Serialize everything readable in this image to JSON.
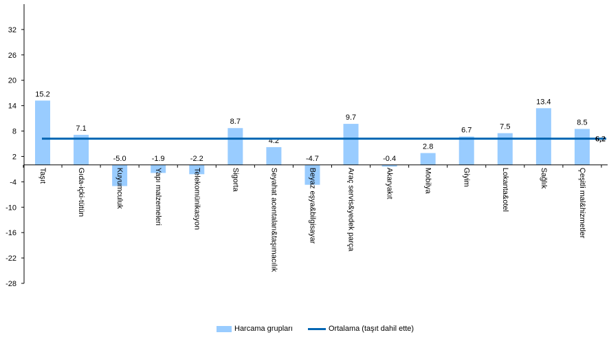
{
  "chart_data": {
    "type": "bar",
    "categories": [
      "Taşıt",
      "Gıda-içki-tütün",
      "Kuyumculuk",
      "Yapı malzemeleri",
      "Telekomünikasyon",
      "Sigorta",
      "Seyahat acentaları&taşımacılık",
      "Beyaz eşya&bilgisayar",
      "Araç servis&yedek parça",
      "Akaryakıt",
      "Mobilya",
      "Giyim",
      "Lokanta&otel",
      "Sağlık",
      "Çeşitli mal&hizmetler"
    ],
    "series": [
      {
        "name": "Harcama grupları",
        "type": "bar",
        "color": "#99ccff",
        "values": [
          15.2,
          7.1,
          -5.0,
          -1.9,
          -2.2,
          8.7,
          4.2,
          -4.7,
          9.7,
          -0.4,
          2.8,
          6.7,
          7.5,
          13.4,
          8.5
        ],
        "value_labels": [
          "15.2",
          "7.1",
          "-5.0",
          "-1.9",
          "-2.2",
          "8.7",
          "4.2",
          "-4.7",
          "9.7",
          "-0.4",
          "2.8",
          "6.7",
          "7.5",
          "13.4",
          "8.5"
        ]
      },
      {
        "name": "Ortalama (taşıt dahil ette)",
        "type": "line",
        "color": "#0066b3",
        "value": 6.2,
        "value_label": "6,2"
      }
    ],
    "y_ticks": [
      "32",
      "26",
      "20",
      "14",
      "8",
      "2",
      "-4",
      "-10",
      "-16",
      "-22",
      "-28"
    ],
    "y_tick_values": [
      32,
      26,
      20,
      14,
      8,
      2,
      -4,
      -10,
      -16,
      -22,
      -28
    ],
    "ylim": [
      -28,
      38
    ],
    "grid": false,
    "legend_position": "bottom"
  }
}
